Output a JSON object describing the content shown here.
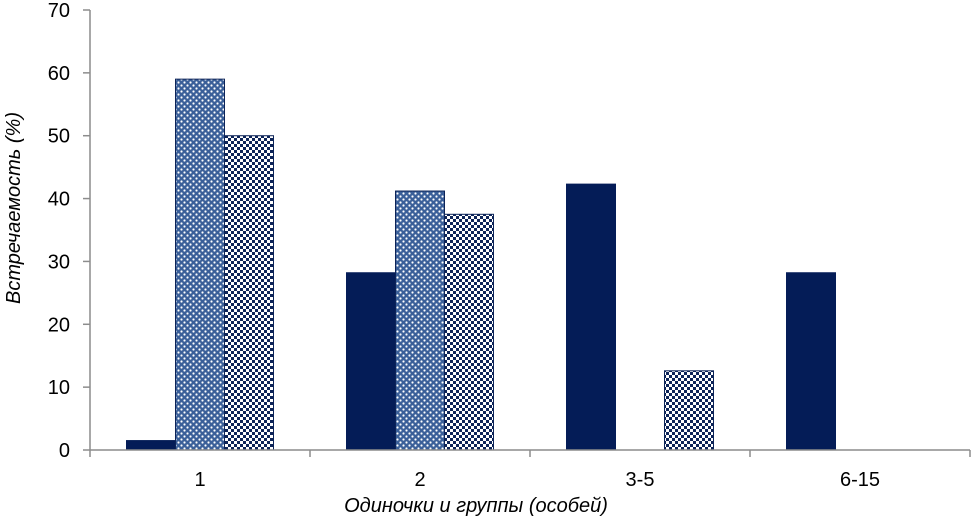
{
  "chart_data": {
    "type": "bar",
    "categories": [
      "1",
      "2",
      "3-5",
      "6-15"
    ],
    "series": [
      {
        "values": [
          1.5,
          28.2,
          42.3,
          28.2
        ],
        "color": "#041c57",
        "pattern": "solid"
      },
      {
        "values": [
          59,
          41.2,
          0,
          0
        ],
        "color": "#3a5f99",
        "pattern": "dots"
      },
      {
        "values": [
          50,
          37.5,
          12.6,
          0
        ],
        "color": "#0d2458",
        "pattern": "checker"
      }
    ],
    "xlabel": "Одиночки и группы (особей)",
    "ylabel": "Встречаемость (%)",
    "ylim": [
      0,
      70
    ],
    "yticks": [
      0,
      10,
      20,
      30,
      40,
      50,
      60,
      70
    ],
    "grid": false,
    "legend": "none"
  }
}
